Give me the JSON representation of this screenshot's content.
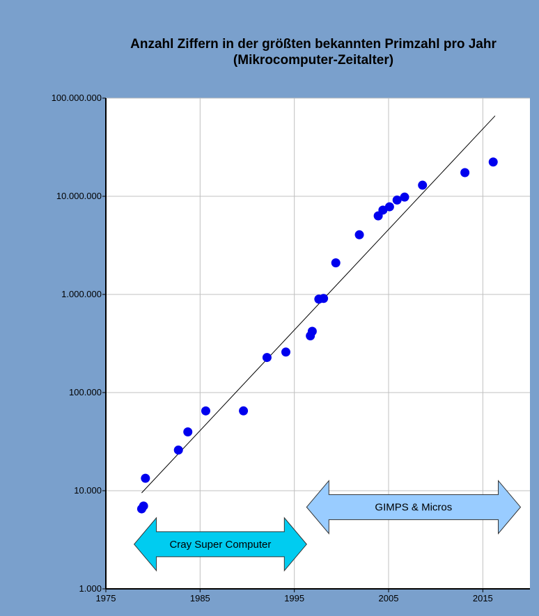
{
  "chart_data": {
    "type": "scatter",
    "title": [
      "Anzahl Ziffern in der größten bekannten Primzahl pro Jahr",
      "(Mikrocomputer-Zeitalter)"
    ],
    "xlabel": "",
    "ylabel": "",
    "x_scale": "linear",
    "y_scale": "log",
    "xlim": [
      1975,
      2020
    ],
    "ylim": [
      1000,
      100000000
    ],
    "x_ticks": [
      1975,
      1985,
      1995,
      2005,
      2015
    ],
    "x_tick_labels": [
      "1975",
      "1985",
      "1995",
      "2005",
      "2015"
    ],
    "y_ticks": [
      1000,
      10000,
      100000,
      1000000,
      10000000,
      100000000
    ],
    "y_tick_labels": [
      "1.000",
      "10.000",
      "100.000",
      "1.000.000",
      "10.000.000",
      "100.000.000"
    ],
    "grid": true,
    "marker_color": "#0000ee",
    "points": [
      {
        "x": 1978.8,
        "y": 6533
      },
      {
        "x": 1979.0,
        "y": 6987
      },
      {
        "x": 1979.2,
        "y": 13395
      },
      {
        "x": 1982.7,
        "y": 25962
      },
      {
        "x": 1983.7,
        "y": 39751
      },
      {
        "x": 1985.6,
        "y": 65050
      },
      {
        "x": 1989.6,
        "y": 65087
      },
      {
        "x": 1992.1,
        "y": 227832
      },
      {
        "x": 1994.1,
        "y": 258716
      },
      {
        "x": 1996.7,
        "y": 378632
      },
      {
        "x": 1996.9,
        "y": 420921
      },
      {
        "x": 1997.6,
        "y": 895932
      },
      {
        "x": 1998.1,
        "y": 909526
      },
      {
        "x": 1999.4,
        "y": 2098960
      },
      {
        "x": 2001.9,
        "y": 4053946
      },
      {
        "x": 2003.9,
        "y": 6320430
      },
      {
        "x": 2004.4,
        "y": 7235733
      },
      {
        "x": 2005.1,
        "y": 7816230
      },
      {
        "x": 2005.9,
        "y": 9152052
      },
      {
        "x": 2006.7,
        "y": 9808358
      },
      {
        "x": 2008.6,
        "y": 12978189
      },
      {
        "x": 2013.1,
        "y": 17425170
      },
      {
        "x": 2016.1,
        "y": 22338618
      }
    ],
    "trendline": {
      "x": [
        1978.8,
        2016.3
      ],
      "y": [
        9500,
        66000000
      ]
    },
    "annotations": [
      {
        "text": "Cray Super Computer",
        "x_from": 1978.0,
        "x_to": 1996.3,
        "y": 2850,
        "color": "#00ccf0"
      },
      {
        "text": "GIMPS &  Micros",
        "x_from": 1996.3,
        "x_to": 2019.0,
        "y": 6800,
        "color": "#99ccff"
      }
    ],
    "colors": {
      "background": "#7aa0cc",
      "plot_background": "#ffffff",
      "grid": "#c0c0c0",
      "axis": "#000000"
    }
  }
}
